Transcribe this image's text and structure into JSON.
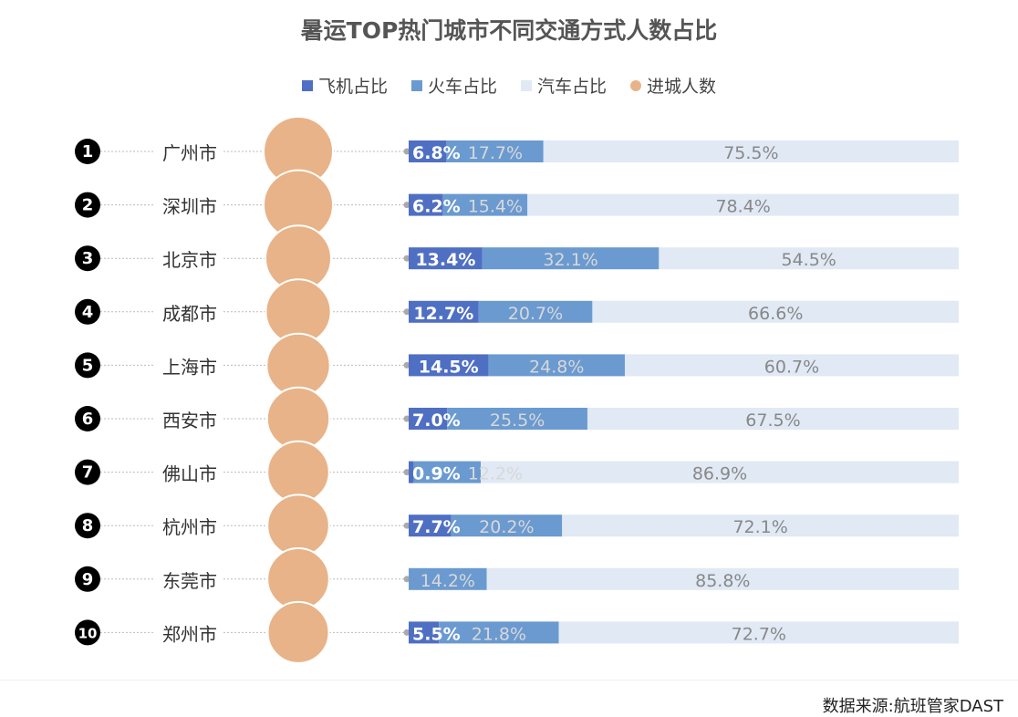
{
  "chart_data": {
    "type": "bar",
    "stacked": true,
    "title": "暑运TOP热门城市不同交通方式人数占比",
    "legend_position": "top",
    "categories": [
      "广州市",
      "深圳市",
      "北京市",
      "成都市",
      "上海市",
      "西安市",
      "佛山市",
      "杭州市",
      "东莞市",
      "郑州市"
    ],
    "ranks": [
      "1",
      "2",
      "3",
      "4",
      "5",
      "6",
      "7",
      "8",
      "9",
      "10"
    ],
    "series": [
      {
        "name": "飞机占比",
        "color": "#4f6fc3",
        "values": [
          6.8,
          6.2,
          13.4,
          12.7,
          14.5,
          7.0,
          0.9,
          7.7,
          0,
          5.5
        ],
        "labels": [
          "6.8%",
          "6.2%",
          "13.4%",
          "12.7%",
          "14.5%",
          "7.0%",
          "0.9%",
          "7.7%",
          "",
          "5.5%"
        ]
      },
      {
        "name": "火车占比",
        "color": "#6b9ad0",
        "values": [
          17.7,
          15.4,
          32.1,
          20.7,
          24.8,
          25.5,
          12.2,
          20.2,
          14.2,
          21.8
        ],
        "labels": [
          "17.7%",
          "15.4%",
          "32.1%",
          "20.7%",
          "24.8%",
          "25.5%",
          "12.2%",
          "20.2%",
          "14.2%",
          "21.8%"
        ]
      },
      {
        "name": "汽车占比",
        "color": "#e0e9f4",
        "values": [
          75.5,
          78.4,
          54.5,
          66.6,
          60.7,
          67.5,
          86.9,
          72.1,
          85.8,
          72.7
        ],
        "labels": [
          "75.5%",
          "78.4%",
          "54.5%",
          "66.6%",
          "60.7%",
          "67.5%",
          "86.9%",
          "72.1%",
          "85.8%",
          "72.7%"
        ]
      },
      {
        "name": "进城人数",
        "color": "#e8b388",
        "type": "bubble",
        "relative_values": [
          1.0,
          1.0,
          0.8,
          0.76,
          0.67,
          0.62,
          0.58,
          0.58,
          0.58,
          0.55
        ]
      }
    ],
    "xlim": [
      0,
      100
    ],
    "grid": false
  },
  "source": "数据来源:航班管家DAST"
}
